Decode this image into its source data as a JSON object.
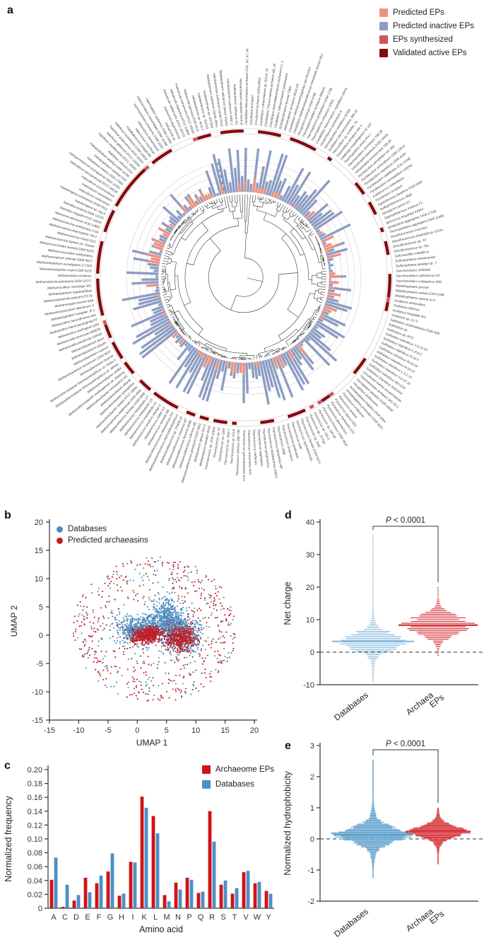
{
  "panels": {
    "a": "a",
    "b": "b",
    "c": "c",
    "d": "d",
    "e": "e"
  },
  "chart_data": [
    {
      "panel": "a",
      "type": "circular-phylogeny-bars",
      "legend": [
        {
          "label": "Predicted EPs",
          "color": "#EE9180"
        },
        {
          "label": "Predicted inactive EPs",
          "color": "#8C9DC3"
        },
        {
          "label": "EPs synthesized",
          "color": "#C9565C"
        },
        {
          "label": "Validated active EPs",
          "color": "#850B0F"
        }
      ],
      "ring_scale": [
        1,
        2,
        3,
        4,
        5
      ],
      "bars": {
        "predicted_color": "#EE9180",
        "inactive_color": "#8C9DC3",
        "inactive_range": [
          0,
          8
        ],
        "predicted_range": [
          0,
          2.5
        ],
        "seed": 20
      },
      "marks": {
        "validated_color": "#850B0F",
        "synthesized_color": "#C9565C",
        "validated_fraction": 0.45,
        "synthesized_fraction": 0.06,
        "seed": 33
      },
      "taxa": [
        "Candidatus Micrarchaeota archaeon CG1_02_47_40",
        "Uncultured archaeon",
        "Uncultured archaeon GZfos26G2",
        "Candidatus Lokiarchaeum sp. GC14_75",
        "Candidatus Thorarchaeota archaeon AB_25",
        "Candidatus Heimdallarchaeota archaeon LC_2",
        "Candidatus Odinarchaeum yellowstonii",
        "Aciduliprofundum boonei T469",
        "Methanogenic archaeon ISO4-H5",
        "Candidatus Methanomethylophilus alvi Mx1201",
        "Candidatus Methanomassiliicoccus intestinalis Issoire-Mx1",
        "Picrophilus oshimae DSM 9789",
        "Thermoplasmatales archaeon BRNA1",
        "Thermoplasma acidophilum DSM 1728",
        "Thermoplasma volcanium GSS1",
        "Candidatus Korarchaeum cryptofilum OPF8",
        "Cenarchaeum symbiosum A",
        "Nitrosopumilus maritimus SCM1",
        "Acidilobus saccharovorans 345-15",
        "Thermofilum sp. ex4484_79",
        "Thermofilum pendens Hrk 5",
        "Caldivirga maquilingensis IC-167",
        "Thermoproteus tenax Kra 1",
        "Thermoproteus uzoniensis 768-20",
        "Vulcanisaeta distributa DSM 14429",
        "Vulcanisaeta moutnovskia 768-28",
        "Pyrobaculum aerophilum str. IM2",
        "Pyrobaculum arsenaticum DSM 13514",
        "Pyrobaculum islandicum DSM 4184",
        "Pyrobaculum calidifontis JCM 11548",
        "Pyrobaculum neutrophilum V24Sta",
        "Caldococcus noboribetus",
        "Pyrodictium occultum",
        "Hyperthermus butylicus DSM 5456",
        "Sulfophobococcus zilligii",
        "Aeropyrum pernix K1",
        "Staphylothermus marinus F1",
        "Ignicoccus hospitalis KIN4/I",
        "Ignisphaera aggregans DSM 17230",
        "Thermosphaera aggregans DSM 11486",
        "Desulfurococcus mucosus",
        "Desulfurococcus amylolyticus 1221n",
        "Desulfurococcus sp. SY",
        "Desulfurococcus sp. Tok",
        "Sulfuracidifex metallicus",
        "Sulfurisphaera ohwakuensis",
        "Sulfurisphaera tokodaii str. 7",
        "Saccharolobus shibatae",
        "Saccharolobus solfataricus P2",
        "Saccharolobus solfataricus 98/2",
        "Metallosphaera prunae",
        "Metallosphaera sedula DSM 5348",
        "Metallosphaera cuprina Ar-4",
        "Acidianus ambivalens",
        "Acidianus infernus",
        "Acidianus hospitalis W1",
        "Acidianus sp. A1-3",
        "Sulfolobus acidocaldarius DSM 639",
        "Sulfolobus sp.",
        "Sulfolobus sp. RC3",
        "Sulfolobus islandicus Y.N.15.51",
        "Sulfolobus islandicus L.D.8.5",
        "Sulfolobus islandicus M.16.4",
        "Sulfolobus islandicus M.14.25",
        "Sulfolobus islandicus M.16.27",
        "Sulfolobus islandicus L.S.2.15",
        "Sulfolobus islandicus Y.G.57.14",
        "Sulfolobus islandicus REY15A",
        "Sulfolobus islandicus HVE10/4",
        "Uncultured marine euryarchaeote",
        "Theionarchaea archaeon DG-70-1",
        "Ferroglobus placidus DSM 10642",
        "Geoglobus acetivorans",
        "Archaeoglobus fulgidus DSM 4304",
        "Archaeoglobus profundus DSM 5631",
        "Pyrococcus endeavori",
        "Pyrococcus woesei",
        "Pyrococcus abyssi GE5",
        "Pyrococcus horikoshii OT3",
        "Pyrococcus glycovorans",
        "Pyrococcus furiosus DSM 3638",
        "Pyrococcus sp. GB-3A",
        "Pyrococcus sp. GB-D",
        "Pyrococcus sp. ST700",
        "Thermococcus sp. NA2",
        "Thermococcus litoralis DSM 5473",
        "Thermococcus hydrothermalis",
        "Thermococcus celer",
        "Thermococcus profundus",
        "Thermococcus fumicolans",
        "Thermococcus zilligii",
        "Thermococcus barophilus MP",
        "Thermococcus kodakarensis KOD1",
        "Thermococcus gorgonarius",
        "Thermococcus aggregans",
        "Thermococcus cleftensis",
        "Thermococcus onnurineus NA1",
        "Thermococcus gammatolerans EJ3",
        "Thermococcus sibiricus MM 739",
        "Thermococcus sp. KS-8",
        "Thermococcus sp. 9oN-7",
        "Thermococcus sp. GE8",
        "Thermococcus sp. KI",
        "Thermococcus sp. JCM 11816",
        "Methanopyrus kandleri AV19",
        "Methanotorris igneus Kol 5",
        "Methanocaldococcus jannaschii DSM 2661",
        "Methanocaldococcus infernus ME",
        "Methanocaldococcus fervens AG86",
        "Methanocaldococcus vulcanius M7",
        "Methanocaldococcus sp. FS406-22",
        "Methanothermococcus thermolithotrophicus",
        "Methanothermococcus okinawensis IH1",
        "Methanococcus vannielii SB",
        "Methanococcus voltae A3",
        "Methanococcus aeolicus Nankai-3",
        "Methanococcus maripaludis X1",
        "Methanococcus maripaludis C6",
        "Methanococcus maripaludis C7",
        "Methanothermus fervidus DSM 2088",
        "Methanosphaera stadtmanae DSM 3091",
        "Methanobrevibacter smithii ATCC 35061",
        "Methanobrevibacter arboriphilus",
        "Methanobrevibacter olleyae",
        "Methanobrevibacter ruminantium M1",
        "Methanothermobacter marburgensis str. Marburg",
        "Methanothermobacter wolfeii",
        "Methanothermobacter thermautotrophicus str. Winter",
        "Methanothermobacter thermautotrophicus str. Delta H",
        "Methanobacterium bryantii",
        "Methanobacterium formicicum DSM 3637",
        "Methanobacterium ivanovii",
        "Methanobacterium paludis",
        "Methanobacterium lacus",
        "Methanocella paludicola SANAE",
        "Methanocella arvoryzae MRE50",
        "Methanothrix soehngenii GP6",
        "Methanothrix thermoacetophila PT",
        "Methanothrix harundinacea 6Ac",
        "Methanospirillum hungatei JF-1",
        "Methanocorpusculum labreanum Z",
        "Methanoregula boonei 6A8",
        "Methanosphaerula palustris E1-9c",
        "Methanogenium organophilum",
        "Methanoculleus marisnigri JR1",
        "Methanolacinia petrolearia DSM 11571",
        "Methanolobus tindarius",
        "Methanohalophilus mahii DSM 5219",
        "Methanohalobium evestigatum Z-7303",
        "Methanosalsum zhilinae DSM 4017",
        "Methanococcoides methylutens",
        "Methanococcoides burtonii DSM 6242",
        "Methanosarcina barkeri str. Fusaro",
        "Methanosarcina mazei Go1",
        "Methanosarcina thermophila TM-1",
        "Methanosarcina acetivorans C2A",
        "Natrinema altunense JCM 12890",
        "Natrialba magadii ATCC 43099",
        "Natrialba asiatica DSM 12278",
        "Haloterrigena sp. arg-4",
        "Haloterrigena turkmenica DSM 5511",
        "Halorubrum sodomense",
        "Halorubrum vacuolatum",
        "Halorubrum ezzemoulense",
        "Halorubrum lacusprofundi ATCC 49239",
        "Halogeometricum borinquense DSM 11551",
        "Haloplanus natans DSM 17983",
        "Haloquadratum walsbyi C23",
        "Haloquadratum walsbyi DSM 16790",
        "Haloferax volcanii DS2",
        "Haloferax mediterranei ATCC 33500",
        "Haloferax gibbonsii ATCC 33959",
        "Haloferax prahovense DSM 18310",
        "Haloferax lucentense DSM 14919",
        "Halalkalicoccus jeotgali B3",
        "Halococcus morrhuae",
        "Halococcus dombrowskii",
        "Natronomonas pharaonis DSM 2160",
        "Halomicrobium mukohataei DSM 12286",
        "Halorhabdus utahensis DSM 12940",
        "Haloarcula sp.",
        "Haloarcula argentinensis",
        "Haloarcula vallismortis ATCC 29715",
        "Haloarcula hispanica ATCC 33960",
        "Haloarcula marismortui ATCC 43049",
        "Haloarcula japonica DSM 6131",
        "Halobacterium sp. AUS-1",
        "Halobacterium sp. GN101",
        "Halobacterium sp. AS7092",
        "Halobacterium salinarum (strain Mex)",
        "Halobacterium salinarum (strain Port)",
        "Halobacterium salinarum (strain Shark)",
        "Halobacterium salinarum NRC-1",
        "Halobacterium salinarum R1",
        "Nanoarchaeum equitans Kin4-M"
      ]
    },
    {
      "panel": "b",
      "type": "scatter",
      "xlabel": "UMAP 1",
      "ylabel": "UMAP 2",
      "xlim": [
        -15,
        20
      ],
      "ylim": [
        -15,
        20
      ],
      "xticks": [
        -15,
        -10,
        -5,
        0,
        5,
        10,
        15,
        20
      ],
      "yticks": [
        -15,
        -10,
        -5,
        0,
        5,
        10,
        15,
        20
      ],
      "legend": [
        {
          "label": "Databases",
          "color": "#4C8CBF"
        },
        {
          "label": "Predicted archaeasins",
          "color": "#C41E24"
        }
      ],
      "seed": 11,
      "clusters": [
        {
          "series": "Databases",
          "kind": "gauss",
          "cx": 0.8,
          "cy": 1.0,
          "sx": 2.2,
          "sy": 1.2,
          "n": 750
        },
        {
          "series": "Databases",
          "kind": "gauss",
          "cx": 4.8,
          "cy": 3.4,
          "sx": 1.4,
          "sy": 1.6,
          "n": 420
        },
        {
          "series": "Databases",
          "kind": "gauss",
          "cx": 6.6,
          "cy": 1.4,
          "sx": 1.3,
          "sy": 1.0,
          "n": 260
        },
        {
          "series": "Databases",
          "kind": "gauss",
          "cx": 7.8,
          "cy": -0.4,
          "sx": 1.7,
          "sy": 1.4,
          "n": 430
        },
        {
          "series": "Databases",
          "kind": "ring",
          "cx": 3,
          "cy": 1,
          "rmin": 3,
          "rmax": 14,
          "n": 230
        },
        {
          "series": "Predicted archaeasins",
          "kind": "gauss",
          "cx": 1.2,
          "cy": -0.1,
          "sx": 1.2,
          "sy": 0.7,
          "n": 330
        },
        {
          "series": "Predicted archaeasins",
          "kind": "gauss",
          "cx": 2.6,
          "cy": 0.5,
          "sx": 0.8,
          "sy": 0.5,
          "n": 120
        },
        {
          "series": "Predicted archaeasins",
          "kind": "gauss",
          "cx": 7.4,
          "cy": -0.6,
          "sx": 1.4,
          "sy": 1.1,
          "n": 430
        },
        {
          "series": "Predicted archaeasins",
          "kind": "ring",
          "cx": 3,
          "cy": 1,
          "rmin": 4,
          "rmax": 14,
          "n": 430
        }
      ]
    },
    {
      "panel": "c",
      "type": "bar",
      "xlabel": "Amino acid",
      "ylabel": "Normalized frequency",
      "ylim": [
        0,
        0.2
      ],
      "ytick_step": 0.02,
      "categories": [
        "A",
        "C",
        "D",
        "E",
        "F",
        "G",
        "H",
        "I",
        "K",
        "L",
        "M",
        "N",
        "P",
        "Q",
        "R",
        "S",
        "T",
        "V",
        "W",
        "Y"
      ],
      "series": [
        {
          "name": "Archaeome EPs",
          "color": "#D01317",
          "values": [
            0.041,
            0.002,
            0.011,
            0.044,
            0.036,
            0.053,
            0.018,
            0.067,
            0.161,
            0.133,
            0.019,
            0.037,
            0.044,
            0.022,
            0.14,
            0.034,
            0.021,
            0.052,
            0.036,
            0.025
          ]
        },
        {
          "name": "Databases",
          "color": "#4D8FC6",
          "values": [
            0.073,
            0.034,
            0.019,
            0.023,
            0.047,
            0.079,
            0.021,
            0.066,
            0.145,
            0.108,
            0.01,
            0.027,
            0.041,
            0.024,
            0.096,
            0.04,
            0.029,
            0.054,
            0.038,
            0.021
          ]
        }
      ]
    },
    {
      "panel": "d",
      "type": "strip-violin",
      "ylabel": "Net charge",
      "ylim": [
        -10,
        40
      ],
      "yticks": [
        -10,
        0,
        10,
        20,
        30,
        40
      ],
      "pvalue": "P < 0.0001",
      "zero_line": true,
      "categories": [
        "Databases",
        "Archaea EPs"
      ],
      "series": [
        {
          "name": "Databases",
          "color": "#85B9DC",
          "mean": 3.3,
          "min": -9,
          "max": 36.2,
          "shape": {
            "A": 46,
            "s": 2.3,
            "tailA": 2.4,
            "tailS": 9,
            "step": 0.55
          }
        },
        {
          "name": "Archaea EPs",
          "color": "#D2242A",
          "mean": 8.3,
          "min": -1,
          "max": 20.2,
          "shape": {
            "A": 44,
            "s": 2.6,
            "tailA": 2.0,
            "tailS": 6,
            "step": 0.55
          }
        }
      ]
    },
    {
      "panel": "e",
      "type": "strip-violin",
      "ylabel": "Normalized hydrophobicity",
      "ylim": [
        -2,
        3
      ],
      "yticks": [
        -2,
        -1,
        0,
        1,
        2,
        3
      ],
      "pvalue": "P < 0.0001",
      "zero_line": true,
      "categories": [
        "Databases",
        "Archaea EPs"
      ],
      "series": [
        {
          "name": "Databases",
          "color": "#5B9FCB",
          "mean": 0.13,
          "min": -1.25,
          "max": 2.55,
          "shape": {
            "A": 44,
            "s": 0.21,
            "tailA": 9,
            "tailS": 0.5,
            "step": 0.032
          }
        },
        {
          "name": "Archaea EPs",
          "color": "#D2242A",
          "mean": 0.24,
          "min": -0.8,
          "max": 1.02,
          "shape": {
            "A": 34,
            "s": 0.17,
            "tailA": 6,
            "tailS": 0.38,
            "step": 0.032
          }
        }
      ]
    }
  ]
}
